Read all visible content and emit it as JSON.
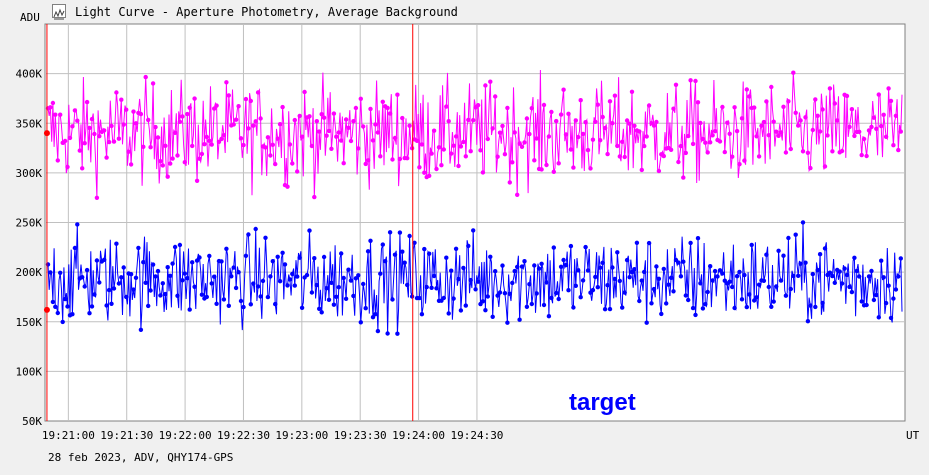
{
  "window": {
    "title": "Light Curve - Aperture Photometry, Average Background",
    "icon": "light-curve-icon"
  },
  "footer": {
    "note": "28 feb 2023, ADV, QHY174-GPS"
  },
  "chart_data": {
    "type": "line",
    "ylabel": "ADU",
    "xlabel": "UT",
    "ylim": [
      50000,
      450000
    ],
    "y_ticks": [
      {
        "value": 50000,
        "label": "50K"
      },
      {
        "value": 100000,
        "label": "100K"
      },
      {
        "value": 150000,
        "label": "150K"
      },
      {
        "value": 200000,
        "label": "200K"
      },
      {
        "value": 250000,
        "label": "250K"
      },
      {
        "value": 300000,
        "label": "300K"
      },
      {
        "value": 350000,
        "label": "350K"
      },
      {
        "value": 400000,
        "label": "400K"
      }
    ],
    "x_range_seconds": [
      1248,
      1690
    ],
    "x_ticks": [
      {
        "value": 1260,
        "label": "19:21:00"
      },
      {
        "value": 1290,
        "label": "19:21:30"
      },
      {
        "value": 1320,
        "label": "19:22:00"
      },
      {
        "value": 1350,
        "label": "19:22:30"
      },
      {
        "value": 1380,
        "label": "19:23:00"
      },
      {
        "value": 1410,
        "label": "19:23:30"
      },
      {
        "value": 1440,
        "label": "19:24:00"
      },
      {
        "value": 1470,
        "label": "19:24:30"
      }
    ],
    "event_markers_time": [
      "19:20:49",
      "19:23:57"
    ],
    "grid": true,
    "series": [
      {
        "color": "#ff00ff",
        "mean": 340000,
        "noise_amplitude": 45000,
        "range": [
          255000,
          440000
        ],
        "n_points": 700
      },
      {
        "name": "target",
        "color": "#0000ff",
        "mean": 193000,
        "noise_amplitude": 40000,
        "range": [
          100000,
          300000
        ],
        "n_points": 700
      }
    ],
    "label_position": "bottom-center",
    "colors": {
      "plot_background": "#ffffff",
      "grid": "#c0c0c0",
      "marker_line": "#ff0000",
      "axis": "#808080"
    }
  }
}
